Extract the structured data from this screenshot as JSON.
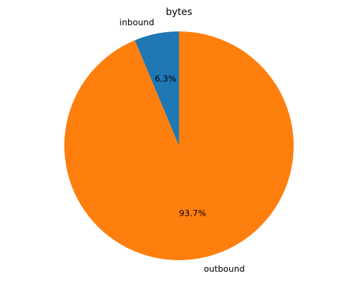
{
  "chart_data": {
    "type": "pie",
    "title": "bytes",
    "slices": [
      {
        "label": "inbound",
        "value": 6.3,
        "pct_label": "6.3%",
        "color": "#1f77b4"
      },
      {
        "label": "outbound",
        "value": 93.7,
        "pct_label": "93.7%",
        "color": "#ff7f0e"
      }
    ],
    "start_angle_deg": 90,
    "direction": "counterclockwise",
    "legend": "none"
  }
}
